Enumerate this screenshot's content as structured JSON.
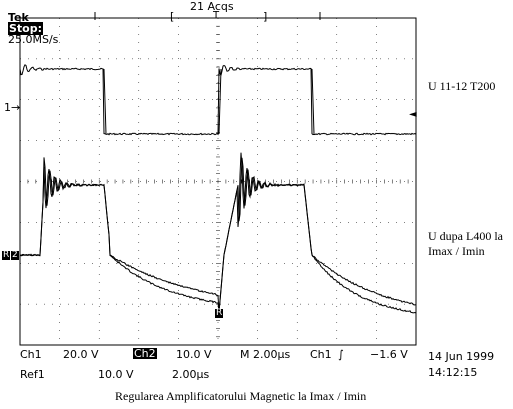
{
  "header": {
    "brand": "Tek",
    "run_state": "Stop:",
    "sample_rate": "25.0MS/s",
    "acquisitions": "21 Acqs",
    "trigger_marker": "T"
  },
  "readout": {
    "ch1_label": "Ch1",
    "ch1_scale": "20.0 V",
    "ch2_label": "Ch2",
    "ch2_scale": "10.0 V",
    "timebase": "M 2.00µs",
    "trig_source": "Ch1",
    "trig_slope": "∫",
    "trig_level": "−1.6 V",
    "ref_label": "Ref1",
    "ref_scale": "10.0 V",
    "ref_time": "2.00µs",
    "date": "14 Jun 1999",
    "time": "14:12:15"
  },
  "markers": {
    "ch1_ground": "1→",
    "ch2_ground": "2",
    "ref_marker": "R",
    "ref_bottom": "R",
    "trigger_level_arrow": "◄"
  },
  "annotations": {
    "trace1_label": "U 11-12 T200",
    "trace2_label_line1": "U dupa L400 la",
    "trace2_label_line2": "Imax / Imin",
    "caption": "Regularea Amplificatorului Magnetic la Imax / Imin"
  },
  "colors": {
    "trace": "#000000",
    "background": "#ffffff",
    "grid": "#000000"
  }
}
